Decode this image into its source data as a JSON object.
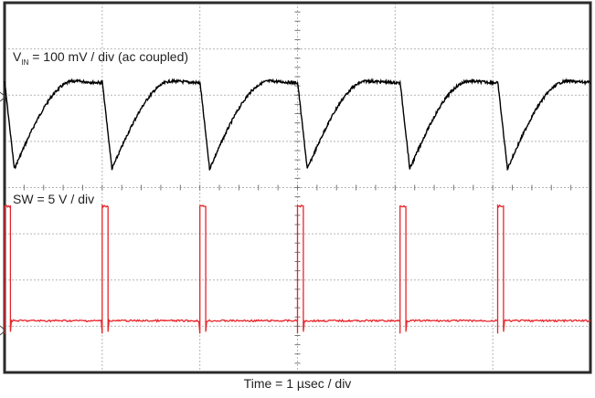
{
  "chart_data": {
    "type": "line",
    "xlabel": "Time = 1 µsec / div",
    "grid": true,
    "x_divisions": 6,
    "y_divisions": 8,
    "x_range_us": [
      0,
      6
    ],
    "period_us": 1.0,
    "series": [
      {
        "name_prefix": "V",
        "name_subscript": "IN",
        "name_rest": " = 100 mV / div (ac coupled)",
        "color": "#000000",
        "shape": "sawtooth ripple",
        "pulse_starts_us": [
          0.0,
          1.0,
          2.0,
          3.0,
          4.05,
          5.05
        ],
        "ripple_mV": [
          -120,
          70
        ],
        "ripple_min_time_from_pulse_us": 0.1,
        "ripple_peak_time_from_pulse_us": 0.72
      },
      {
        "name": "SW = 5 V / div",
        "color": "#e8242a",
        "shape": "switch pulses",
        "pulse_starts_us": [
          0.0,
          1.0,
          2.0,
          3.0,
          4.05,
          5.05
        ],
        "pulse_width_us": 0.06,
        "low_V": 0,
        "high_V": 12.4
      }
    ]
  }
}
